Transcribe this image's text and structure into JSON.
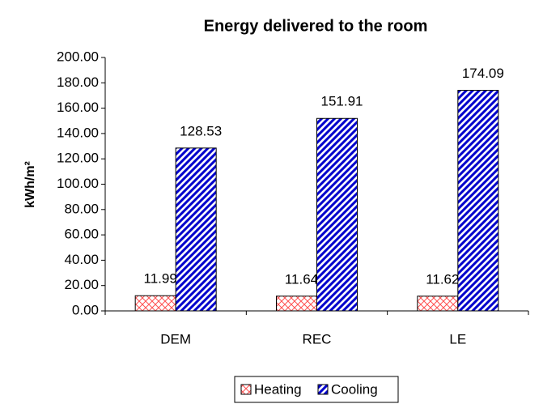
{
  "chart_data": {
    "type": "bar",
    "title": "Energy delivered to the room",
    "y_label": "kWh/m²",
    "categories": [
      "DEM",
      "REC",
      "LE"
    ],
    "series": [
      {
        "name": "Heating",
        "color": "#ff5050",
        "values": [
          11.99,
          11.64,
          11.62
        ]
      },
      {
        "name": "Cooling",
        "color": "#0000cc",
        "values": [
          128.53,
          151.91,
          174.09
        ]
      }
    ],
    "ylim": [
      0,
      200
    ],
    "yticks": [
      {
        "value": 0,
        "label": "0.00"
      },
      {
        "value": 20,
        "label": "20.00"
      },
      {
        "value": 40,
        "label": "40.00"
      },
      {
        "value": 60,
        "label": "60.00"
      },
      {
        "value": 80,
        "label": "80.00"
      },
      {
        "value": 100,
        "label": "100.00"
      },
      {
        "value": 120,
        "label": "120.00"
      },
      {
        "value": 140,
        "label": "140.00"
      },
      {
        "value": 160,
        "label": "160.00"
      },
      {
        "value": 180,
        "label": "180.00"
      },
      {
        "value": 200,
        "label": "200.00"
      }
    ],
    "grid": false,
    "legend": "bottom"
  }
}
